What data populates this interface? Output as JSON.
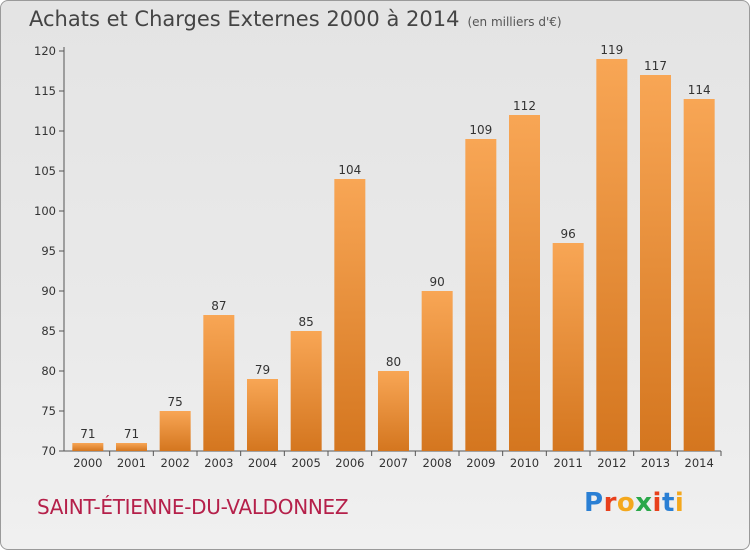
{
  "title": "Achats et Charges Externes 2000 à 2014",
  "subtitle": "(en milliers d'€)",
  "commune": "SAINT-ÉTIENNE-DU-VALDONNEZ",
  "brand": {
    "letters": [
      "P",
      "r",
      "o",
      "x",
      "i",
      "t",
      "i"
    ],
    "colors": [
      "#2a7fd4",
      "#e8401c",
      "#f4a81d",
      "#2aa84a",
      "#e8401c",
      "#2a7fd4",
      "#f4a81d"
    ]
  },
  "colors": {
    "bar_top": "#f8a655",
    "bar_bottom": "#d4761f",
    "axis": "#555555"
  },
  "chart_data": {
    "type": "bar",
    "title": "Achats et Charges Externes 2000 à 2014",
    "subtitle": "(en milliers d'€)",
    "xlabel": "",
    "ylabel": "",
    "categories": [
      "2000",
      "2001",
      "2002",
      "2003",
      "2004",
      "2005",
      "2006",
      "2007",
      "2008",
      "2009",
      "2010",
      "2011",
      "2012",
      "2013",
      "2014"
    ],
    "values": [
      71,
      71,
      75,
      87,
      79,
      85,
      104,
      80,
      90,
      109,
      112,
      96,
      119,
      117,
      114
    ],
    "ylim": [
      70,
      120
    ],
    "yticks": [
      70,
      75,
      80,
      85,
      90,
      95,
      100,
      105,
      110,
      115,
      120
    ],
    "grid": false,
    "legend": "none"
  }
}
